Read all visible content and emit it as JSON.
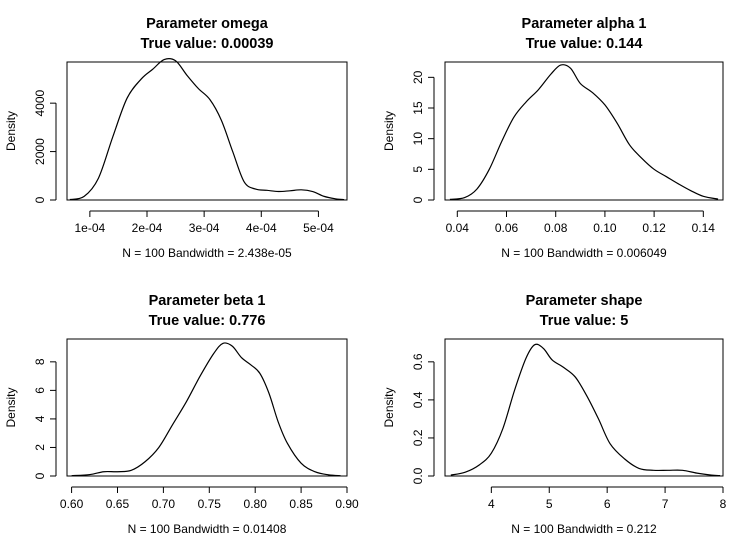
{
  "chart_data": [
    {
      "type": "line",
      "title": "Parameter omega",
      "subtitle": "True value:  0.00039",
      "xlabel": "N = 100   Bandwidth = 2.438e-05",
      "ylabel": "Density",
      "xlim": [
        6e-05,
        0.00055
      ],
      "ylim": [
        0,
        5700
      ],
      "x_ticks": [
        0.0001,
        0.0002,
        0.0003,
        0.0004,
        0.0005
      ],
      "x_tick_labels": [
        "1e-04",
        "2e-04",
        "3e-04",
        "4e-04",
        "5e-04"
      ],
      "y_ticks": [
        0,
        2000,
        4000
      ],
      "y_tick_labels": [
        "0",
        "2000",
        "4000"
      ],
      "grid": false,
      "series": [
        {
          "x": [
            6.5e-05,
            9e-05,
            0.000115,
            0.00014,
            0.000165,
            0.00019,
            0.00021,
            0.00023,
            0.00025,
            0.00027,
            0.00029,
            0.00031,
            0.00033,
            0.00035,
            0.00037,
            0.00039,
            0.00041,
            0.00043,
            0.00045,
            0.00047,
            0.00049,
            0.00051,
            0.00053,
            0.000545
          ],
          "y": [
            20,
            150,
            900,
            2600,
            4200,
            5000,
            5400,
            5800,
            5750,
            5150,
            4600,
            4150,
            3300,
            2000,
            750,
            450,
            400,
            350,
            380,
            420,
            350,
            150,
            50,
            15
          ]
        }
      ]
    },
    {
      "type": "line",
      "title": "Parameter alpha 1",
      "subtitle": "True value:  0.144",
      "xlabel": "N = 100   Bandwidth = 0.006049",
      "ylabel": "Density",
      "xlim": [
        0.035,
        0.148
      ],
      "ylim": [
        0,
        22.5
      ],
      "x_ticks": [
        0.04,
        0.06,
        0.08,
        0.1,
        0.12,
        0.14
      ],
      "x_tick_labels": [
        "0.04",
        "0.06",
        "0.08",
        "0.10",
        "0.12",
        "0.14"
      ],
      "y_ticks": [
        0,
        5,
        10,
        15,
        20
      ],
      "y_tick_labels": [
        "0",
        "5",
        "10",
        "15",
        "20"
      ],
      "grid": false,
      "series": [
        {
          "x": [
            0.037,
            0.043,
            0.048,
            0.053,
            0.058,
            0.063,
            0.068,
            0.073,
            0.078,
            0.082,
            0.086,
            0.09,
            0.095,
            0.1,
            0.105,
            0.11,
            0.115,
            0.12,
            0.125,
            0.13,
            0.135,
            0.14,
            0.146
          ],
          "y": [
            0.1,
            0.4,
            1.8,
            5.0,
            9.5,
            13.5,
            16.0,
            18.0,
            20.5,
            22.0,
            21.5,
            19.0,
            17.5,
            15.5,
            12.5,
            9.0,
            6.8,
            5.0,
            3.8,
            2.6,
            1.5,
            0.6,
            0.15
          ]
        }
      ]
    },
    {
      "type": "line",
      "title": "Parameter beta 1",
      "subtitle": "True value:  0.776",
      "xlabel": "N = 100   Bandwidth = 0.01408",
      "ylabel": "Density",
      "xlim": [
        0.595,
        0.9
      ],
      "ylim": [
        0,
        9.6
      ],
      "x_ticks": [
        0.6,
        0.65,
        0.7,
        0.75,
        0.8,
        0.85,
        0.9
      ],
      "x_tick_labels": [
        "0.60",
        "0.65",
        "0.70",
        "0.75",
        "0.80",
        "0.85",
        "0.90"
      ],
      "y_ticks": [
        0,
        2,
        4,
        6,
        8
      ],
      "y_tick_labels": [
        "0",
        "2",
        "4",
        "6",
        "8"
      ],
      "grid": false,
      "series": [
        {
          "x": [
            0.6,
            0.62,
            0.635,
            0.65,
            0.665,
            0.68,
            0.695,
            0.71,
            0.725,
            0.74,
            0.755,
            0.765,
            0.775,
            0.785,
            0.795,
            0.805,
            0.815,
            0.825,
            0.835,
            0.85,
            0.865,
            0.88,
            0.893
          ],
          "y": [
            0.02,
            0.1,
            0.3,
            0.3,
            0.4,
            1.0,
            2.0,
            3.6,
            5.2,
            7.0,
            8.6,
            9.3,
            9.1,
            8.3,
            7.8,
            7.2,
            5.8,
            3.8,
            2.3,
            0.9,
            0.3,
            0.08,
            0.02
          ]
        }
      ]
    },
    {
      "type": "line",
      "title": "Parameter shape",
      "subtitle": "True value:  5",
      "xlabel": "N = 100   Bandwidth = 0.212",
      "ylabel": "Density",
      "xlim": [
        3.2,
        8.0
      ],
      "ylim": [
        0,
        0.72
      ],
      "x_ticks": [
        4,
        5,
        6,
        7,
        8
      ],
      "x_tick_labels": [
        "4",
        "5",
        "6",
        "7",
        "8"
      ],
      "y_ticks": [
        0.0,
        0.2,
        0.4,
        0.6
      ],
      "y_tick_labels": [
        "0.0",
        "0.2",
        "0.4",
        "0.6"
      ],
      "grid": false,
      "series": [
        {
          "x": [
            3.3,
            3.55,
            3.8,
            4.0,
            4.2,
            4.4,
            4.6,
            4.75,
            4.9,
            5.05,
            5.25,
            5.45,
            5.65,
            5.85,
            6.05,
            6.3,
            6.55,
            6.8,
            7.05,
            7.3,
            7.55,
            7.8,
            7.95
          ],
          "y": [
            0.005,
            0.02,
            0.06,
            0.12,
            0.25,
            0.45,
            0.62,
            0.69,
            0.67,
            0.61,
            0.57,
            0.52,
            0.42,
            0.3,
            0.17,
            0.09,
            0.04,
            0.03,
            0.03,
            0.03,
            0.015,
            0.005,
            0.002
          ]
        }
      ]
    }
  ]
}
